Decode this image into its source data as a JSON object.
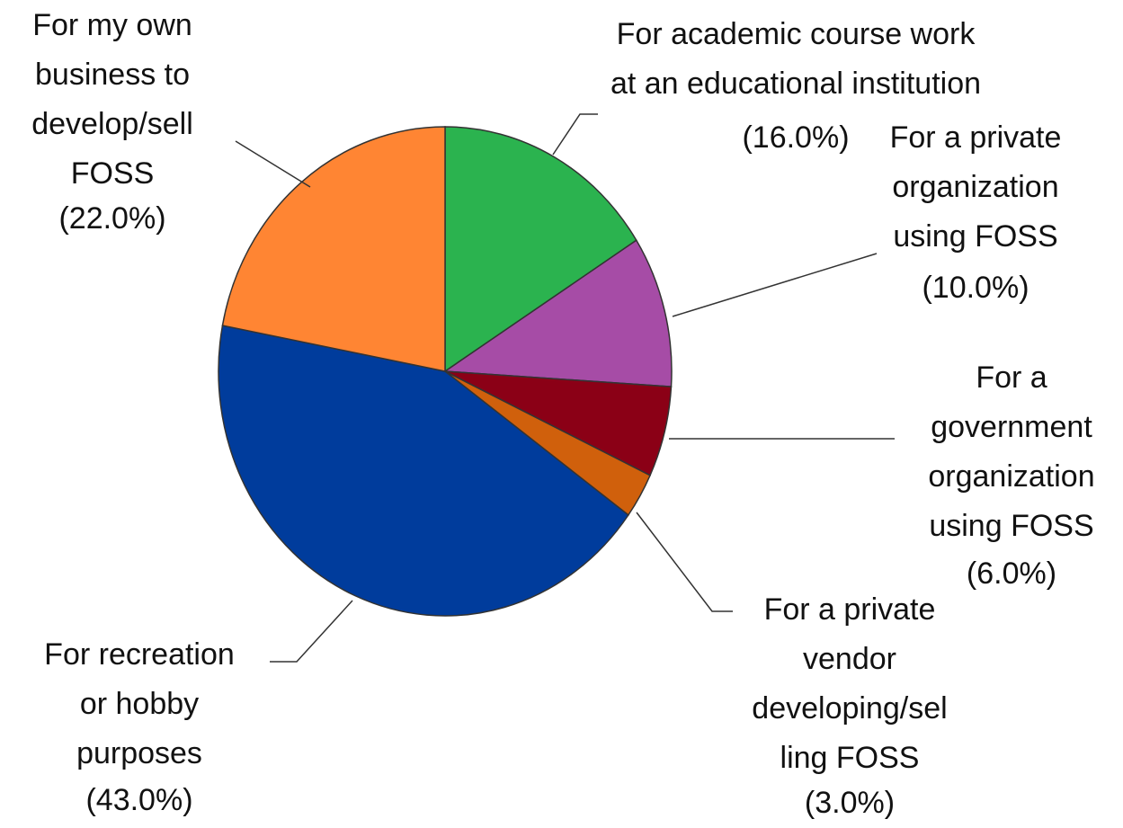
{
  "chart_data": {
    "type": "pie",
    "categories": [
      [
        "For academic course work",
        "at an educational institution"
      ],
      [
        "For a private",
        "organization",
        "using FOSS"
      ],
      [
        "For a",
        "government",
        "organization",
        "using FOSS"
      ],
      [
        "For a private",
        "vendor",
        "developing/sel",
        "ling FOSS"
      ],
      [
        "For recreation",
        "or hobby",
        "purposes"
      ],
      [
        "For my own",
        "business to",
        "develop/sell",
        "FOSS"
      ]
    ],
    "values": [
      16,
      10,
      6,
      3,
      43,
      22
    ],
    "value_labels": [
      "(16.0%)",
      "(10.0%)",
      "(6.0%)",
      "(3.0%)",
      "(43.0%)",
      "(22.0%)"
    ],
    "colors": [
      "#2bb34f",
      "#a64ca6",
      "#8b0016",
      "#d0600c",
      "#003c9c",
      "#ff8533"
    ]
  }
}
